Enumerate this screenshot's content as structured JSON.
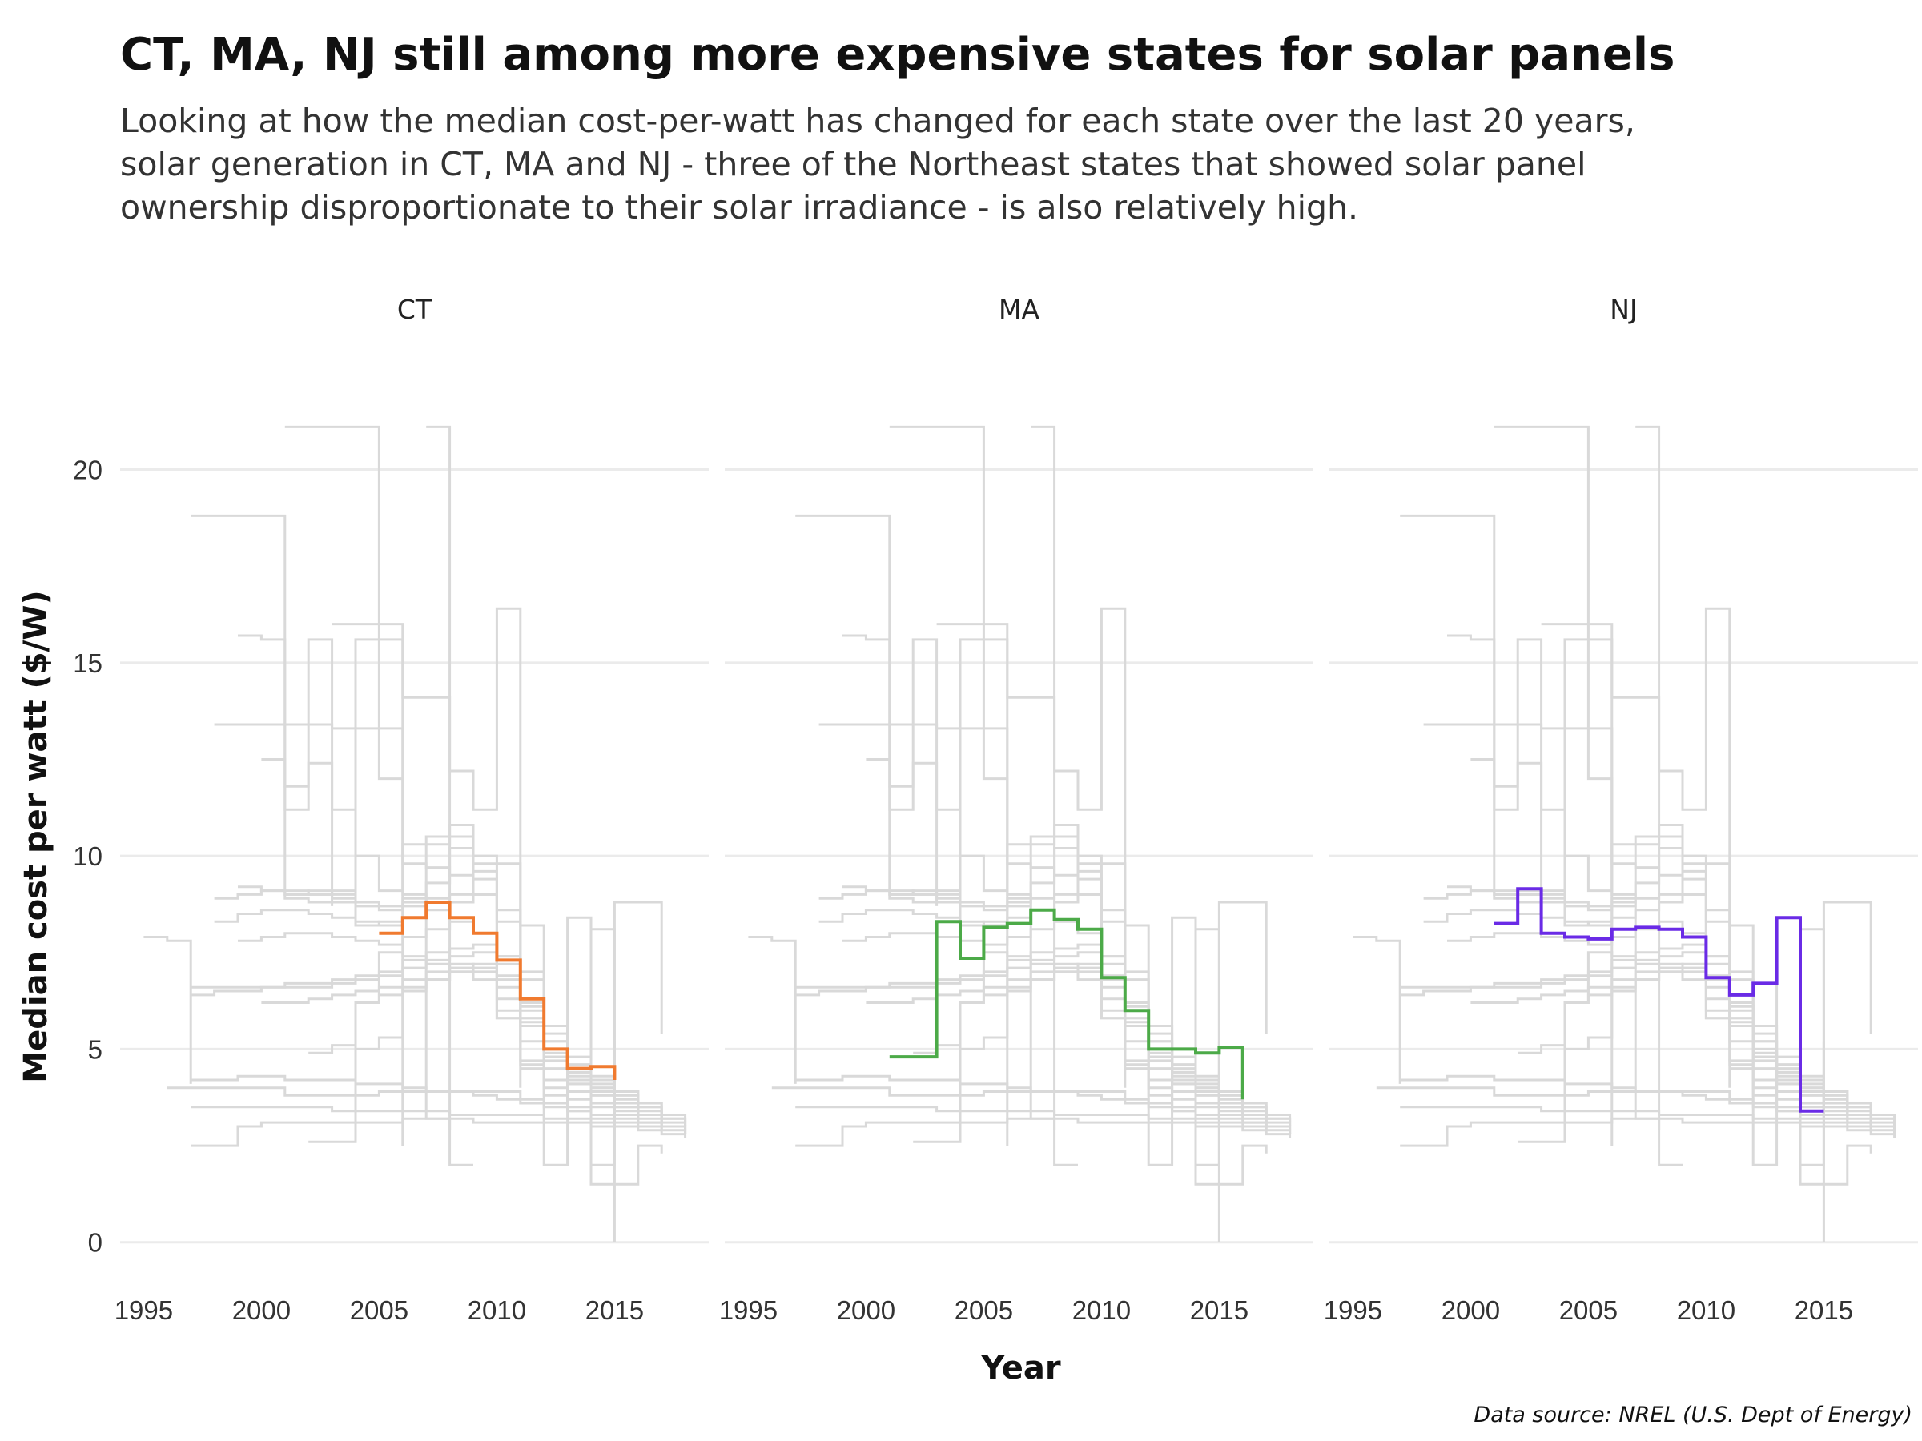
{
  "title": "CT, MA, NJ still among more expensive states for solar panels",
  "subtitle": [
    "Looking at how the median cost-per-watt has changed for each state over the last 20 years,",
    "solar generation in CT, MA and NJ - three of the Northeast states that showed solar panel",
    "ownership disproportionate to their solar irradiance - is also relatively high."
  ],
  "caption": "Data source: NREL (U.S. Dept of Energy)",
  "colors": {
    "background_lines": "#d9d9d9",
    "grid": "#ebebeb",
    "CT": "#f07a2f",
    "MA": "#4caa48",
    "NJ": "#6a2be6"
  },
  "chart_data": {
    "type": "line",
    "step": true,
    "xlabel": "Year",
    "ylabel": "Median cost per watt ($/W)",
    "xlim": [
      1994,
      2019
    ],
    "ylim": [
      -1,
      22
    ],
    "x_ticks": [
      1995,
      2000,
      2005,
      2010,
      2015
    ],
    "y_ticks": [
      0,
      5,
      10,
      15,
      20
    ],
    "grid": "horizontal",
    "facets": [
      "CT",
      "MA",
      "NJ"
    ],
    "highlight": [
      {
        "name": "CT",
        "x": [
          2005,
          2006,
          2007,
          2008,
          2009,
          2010,
          2011,
          2012,
          2013,
          2014,
          2015
        ],
        "y": [
          8.0,
          8.4,
          8.8,
          8.4,
          8.0,
          7.3,
          6.3,
          5.0,
          4.5,
          4.55,
          4.2
        ]
      },
      {
        "name": "MA",
        "x": [
          2001,
          2002,
          2003,
          2004,
          2005,
          2006,
          2007,
          2008,
          2009,
          2010,
          2011,
          2012,
          2013,
          2014,
          2015,
          2016
        ],
        "y": [
          4.8,
          4.8,
          8.3,
          7.35,
          8.15,
          8.25,
          8.6,
          8.35,
          8.1,
          6.85,
          6.0,
          5.0,
          5.0,
          4.9,
          5.05,
          3.7
        ]
      },
      {
        "name": "NJ",
        "x": [
          2001,
          2002,
          2003,
          2004,
          2005,
          2006,
          2007,
          2008,
          2009,
          2010,
          2011,
          2012,
          2013,
          2014,
          2015
        ],
        "y": [
          8.25,
          9.15,
          8.0,
          7.9,
          7.85,
          8.1,
          8.15,
          8.1,
          7.9,
          6.85,
          6.4,
          6.7,
          8.4,
          3.4,
          3.4
        ]
      }
    ],
    "other_states": [
      {
        "x": [
          1995,
          1996,
          1997
        ],
        "y": [
          7.9,
          7.8,
          4.1
        ]
      },
      {
        "x": [
          1997,
          1998,
          1999,
          2000,
          2001,
          2002,
          2003
        ],
        "y": [
          18.8,
          18.8,
          18.8,
          18.8,
          8.9,
          8.8,
          8.7
        ]
      },
      {
        "x": [
          1999,
          2000,
          2001,
          2002,
          2003,
          2004,
          2005,
          2006
        ],
        "y": [
          15.7,
          15.6,
          11.2,
          15.6,
          9.0,
          15.6,
          15.6,
          2.5
        ]
      },
      {
        "x": [
          2001,
          2002,
          2003,
          2004,
          2005,
          2006,
          2007,
          2008
        ],
        "y": [
          21.1,
          21.1,
          21.1,
          21.1,
          12.0,
          9.0,
          3.2,
          2.9
        ]
      },
      {
        "x": [
          2003,
          2004,
          2005,
          2006,
          2007,
          2008,
          2009
        ],
        "y": [
          16.0,
          16.0,
          16.0,
          14.1,
          14.1,
          2.0,
          2.0
        ]
      },
      {
        "x": [
          2007,
          2008,
          2009,
          2010,
          2011
        ],
        "y": [
          21.1,
          12.2,
          11.2,
          16.4,
          4.0
        ]
      },
      {
        "x": [
          1997,
          1998,
          1999,
          2000,
          2001,
          2002,
          2003,
          2004,
          2005,
          2006,
          2007,
          2008,
          2009,
          2010,
          2011,
          2012,
          2013,
          2014,
          2015,
          2016,
          2017,
          2018
        ],
        "y": [
          6.6,
          6.6,
          6.6,
          6.6,
          6.7,
          6.7,
          6.8,
          6.9,
          7.0,
          7.3,
          7.5,
          7.6,
          7.7,
          6.8,
          6.2,
          5.2,
          4.6,
          4.2,
          3.8,
          3.5,
          3.2,
          3.0
        ]
      },
      {
        "x": [
          1997,
          1998,
          1999,
          2000,
          2001,
          2002,
          2003,
          2004,
          2005,
          2006,
          2007,
          2008,
          2009,
          2010,
          2011,
          2012,
          2013,
          2014,
          2015,
          2016,
          2017,
          2018
        ],
        "y": [
          6.4,
          6.5,
          6.5,
          6.6,
          6.6,
          6.6,
          6.7,
          6.8,
          6.9,
          7.1,
          7.3,
          7.4,
          7.5,
          6.6,
          6.0,
          5.0,
          4.4,
          4.0,
          3.6,
          3.3,
          3.0,
          2.8
        ]
      },
      {
        "x": [
          1998,
          1999,
          2000,
          2001,
          2002,
          2003,
          2004,
          2005,
          2006,
          2007,
          2008,
          2009,
          2010,
          2011,
          2012,
          2013,
          2014,
          2015,
          2016,
          2017,
          2018
        ],
        "y": [
          8.9,
          9.0,
          9.1,
          9.0,
          9.0,
          8.8,
          8.7,
          8.6,
          8.7,
          8.9,
          9.0,
          9.6,
          8.6,
          7.0,
          5.6,
          4.8,
          4.3,
          3.9,
          3.6,
          3.3,
          3.1
        ]
      },
      {
        "x": [
          1998,
          1999,
          2000,
          2001,
          2002,
          2003,
          2004,
          2005,
          2006,
          2007,
          2008,
          2009,
          2010,
          2011,
          2012,
          2013,
          2014,
          2015,
          2016,
          2017,
          2018
        ],
        "y": [
          8.3,
          8.5,
          8.6,
          8.6,
          8.5,
          8.4,
          8.3,
          8.2,
          8.4,
          8.6,
          8.8,
          9.4,
          8.3,
          6.8,
          5.4,
          4.6,
          4.1,
          3.8,
          3.5,
          3.2,
          3.0
        ]
      },
      {
        "x": [
          1999,
          2000,
          2001,
          2002,
          2003,
          2004,
          2005,
          2006,
          2007,
          2008,
          2009,
          2010,
          2011,
          2012,
          2013,
          2014,
          2015,
          2016,
          2017
        ],
        "y": [
          9.2,
          9.1,
          9.0,
          9.1,
          8.9,
          8.8,
          8.7,
          8.9,
          9.3,
          10.2,
          9.8,
          7.4,
          5.8,
          4.9,
          4.3,
          4.0,
          3.7,
          3.4,
          3.2
        ]
      },
      {
        "x": [
          1999,
          2000,
          2001,
          2002,
          2003,
          2004,
          2005,
          2006,
          2007,
          2008,
          2009,
          2010,
          2011,
          2012,
          2013,
          2014,
          2015,
          2016,
          2017
        ],
        "y": [
          7.8,
          7.9,
          8.0,
          8.0,
          7.9,
          7.8,
          7.7,
          7.9,
          8.1,
          8.3,
          8.0,
          6.9,
          5.6,
          4.7,
          4.1,
          3.8,
          3.5,
          3.3,
          3.1
        ]
      },
      {
        "x": [
          2000,
          2001,
          2002,
          2003,
          2004,
          2005,
          2006,
          2007,
          2008,
          2009,
          2010,
          2011,
          2012,
          2013,
          2014,
          2015,
          2016,
          2017
        ],
        "y": [
          12.5,
          11.8,
          12.4,
          11.2,
          10.0,
          9.1,
          10.3,
          10.5,
          10.8,
          9.0,
          7.4,
          6.1,
          5.2,
          4.5,
          4.2,
          3.9,
          3.6,
          3.3
        ]
      },
      {
        "x": [
          2002,
          2003,
          2004,
          2005,
          2006,
          2007,
          2008,
          2009,
          2010,
          2011,
          2012,
          2013,
          2014,
          2015,
          2016,
          2017
        ],
        "y": [
          4.9,
          5.1,
          5.0,
          5.3,
          6.5,
          6.8,
          7.2,
          7.0,
          5.8,
          4.6,
          4.0,
          3.7,
          3.5,
          3.3,
          3.1,
          2.9
        ]
      },
      {
        "x": [
          1997,
          1998,
          1999,
          2000,
          2001,
          2002,
          2003,
          2004,
          2005,
          2006,
          2007,
          2008,
          2009,
          2010,
          2011,
          2012,
          2013,
          2014,
          2015,
          2016,
          2017,
          2018
        ],
        "y": [
          3.5,
          3.5,
          3.5,
          3.5,
          3.5,
          3.5,
          3.4,
          3.4,
          3.4,
          3.4,
          3.4,
          3.3,
          3.3,
          3.3,
          3.3,
          3.2,
          3.2,
          3.1,
          3.1,
          3.0,
          2.9,
          2.8
        ]
      },
      {
        "x": [
          1997,
          1998,
          1999,
          2000,
          2001,
          2002,
          2003,
          2004,
          2005,
          2006,
          2007,
          2008,
          2009,
          2010,
          2011,
          2012,
          2013,
          2014,
          2015,
          2016,
          2017,
          2018
        ],
        "y": [
          2.5,
          2.5,
          3.0,
          3.1,
          3.1,
          3.1,
          3.1,
          3.1,
          3.1,
          3.2,
          3.2,
          3.2,
          3.1,
          3.1,
          3.1,
          3.1,
          3.1,
          3.0,
          3.0,
          2.9,
          2.8,
          2.7
        ]
      },
      {
        "x": [
          1997,
          1998,
          1999,
          2000,
          2001,
          2002,
          2003,
          2004,
          2005,
          2006,
          2007,
          2008,
          2009,
          2010,
          2011,
          2012,
          2013,
          2014,
          2015,
          2016,
          2017
        ],
        "y": [
          4.2,
          4.2,
          4.3,
          4.3,
          4.2,
          4.2,
          4.2,
          4.1,
          4.1,
          4.0,
          3.9,
          3.9,
          3.8,
          3.7,
          3.6,
          3.5,
          3.4,
          3.3,
          3.2,
          3.1,
          3.0
        ]
      },
      {
        "x": [
          1998,
          1999,
          2000,
          2001,
          2002,
          2003,
          2004,
          2005,
          2006,
          2007,
          2008,
          2009,
          2010,
          2011,
          2012,
          2013,
          2014,
          2015,
          2016,
          2017
        ],
        "y": [
          13.4,
          13.4,
          13.4,
          13.4,
          13.4,
          13.3,
          13.3,
          13.3,
          9.8,
          9.7,
          9.5,
          9.0,
          7.2,
          5.8,
          4.8,
          4.4,
          1.5,
          1.5,
          2.5,
          2.3
        ]
      },
      {
        "x": [
          2001,
          2002,
          2003,
          2004,
          2005,
          2006,
          2007,
          2008,
          2009,
          2010,
          2011,
          2012,
          2013,
          2014,
          2015
        ],
        "y": [
          9.1,
          9.0,
          9.1,
          8.2,
          8.3,
          8.8,
          10.3,
          10.5,
          10.0,
          9.8,
          8.2,
          2.0,
          8.4,
          2.0,
          5.2
        ]
      },
      {
        "x": [
          2004,
          2005,
          2006,
          2007,
          2008,
          2009,
          2010,
          2011,
          2012,
          2013,
          2014,
          2015,
          2016,
          2017,
          2018
        ],
        "y": [
          6.2,
          7.5,
          7.4,
          7.2,
          7.0,
          6.8,
          5.8,
          4.7,
          4.2,
          3.9,
          3.6,
          3.4,
          3.2,
          3.0,
          2.8
        ]
      },
      {
        "x": [
          1996,
          1997,
          1998,
          1999,
          2000,
          2001,
          2002,
          2003,
          2004,
          2005,
          2006,
          2007,
          2008,
          2009,
          2010,
          2011,
          2012,
          2013,
          2014,
          2015
        ],
        "y": [
          4.0,
          4.0,
          4.0,
          4.0,
          4.0,
          3.8,
          3.8,
          3.8,
          3.8,
          3.9,
          3.9,
          3.9,
          3.9,
          3.9,
          3.9,
          3.7,
          3.6,
          3.4,
          8.1,
          0.0
        ]
      },
      {
        "x": [
          2011,
          2012,
          2013,
          2014,
          2015,
          2016,
          2017
        ],
        "y": [
          4.5,
          3.8,
          3.5,
          3.2,
          8.8,
          8.8,
          5.4
        ]
      },
      {
        "x": [
          2000,
          2001,
          2002,
          2003,
          2004,
          2005,
          2006,
          2007,
          2008,
          2009,
          2010,
          2011,
          2012,
          2013,
          2014,
          2015,
          2016,
          2017,
          2018
        ],
        "y": [
          6.2,
          6.2,
          6.3,
          6.4,
          6.5,
          6.6,
          6.8,
          7.0,
          7.1,
          7.2,
          6.3,
          5.7,
          4.8,
          4.2,
          3.9,
          3.6,
          3.3,
          3.1,
          2.9
        ]
      },
      {
        "x": [
          2002,
          2003,
          2004,
          2005,
          2006,
          2007,
          2008,
          2009,
          2010,
          2011,
          2012,
          2013,
          2014,
          2015,
          2016
        ],
        "y": [
          2.6,
          2.6,
          6.2,
          6.4,
          6.6,
          6.8,
          7.0,
          7.1,
          6.0,
          5.2,
          4.5,
          4.1,
          3.8,
          3.5,
          3.3
        ]
      }
    ]
  }
}
